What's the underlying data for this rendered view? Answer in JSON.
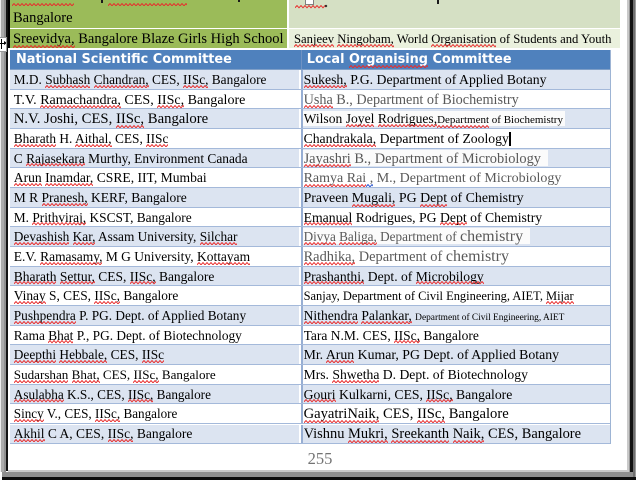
{
  "page": {
    "page_number": "255"
  },
  "colors": {
    "green_mid": "#9bbb59",
    "green_light": "#d5e0c4",
    "green_pale": "#eaf1dd",
    "header_blue": "#4f81bd",
    "row_blue": "#dce4f1",
    "row_white": "#ffffff",
    "border_blue": "#a4b9da",
    "divider_blue": "#97aed3",
    "text_black": "#000000",
    "text_gray": "#595959",
    "squiggle_red": "#e82c2c",
    "squiggle_blue": "#2952cc",
    "highlight_box": "#fbfbfb",
    "page_number_gray": "#737373"
  },
  "green_table": {
    "partial_row": {
      "left_line2": "Bangalore"
    },
    "row": {
      "left": [
        {
          "t": "Sreevidya,",
          "sq": "red"
        },
        {
          "t": " Bangalore Blaze Girls High School"
        }
      ],
      "left_fs": 14.5,
      "right": [
        {
          "t": "Sanjeev",
          "sq": "red"
        },
        {
          "t": " "
        },
        {
          "t": "Ningobam,",
          "sq": "red"
        },
        {
          "t": " World "
        },
        {
          "t": "Organisation",
          "sq": "red"
        },
        {
          "t": " of Students and Youth"
        }
      ],
      "right_fs": 12.67
    }
  },
  "committee_table": {
    "header": {
      "left": [
        {
          "t": "National Scientific Committee"
        }
      ],
      "right": [
        {
          "t": "Local "
        },
        {
          "t": "Organising",
          "sq": "red"
        },
        {
          "t": " Committee"
        }
      ]
    },
    "rows": [
      {
        "lfs": 13.3,
        "left": [
          {
            "t": "M.D. "
          },
          {
            "t": "Subhash",
            "sq": "red"
          },
          {
            "t": " "
          },
          {
            "t": "Chandran,",
            "sq": "red"
          },
          {
            "t": " CES, "
          },
          {
            "t": "IISc,",
            "sq": "red"
          },
          {
            "t": " Bangalore"
          }
        ],
        "rfs": 13.75,
        "right": [
          {
            "t": "Sukesh,",
            "sq": "red"
          },
          {
            "t": " P.G. Department of Applied Botany"
          }
        ]
      },
      {
        "lfs": 14.05,
        "left": [
          {
            "t": "T.V. "
          },
          {
            "t": "Ramachandra,",
            "sq": "red"
          },
          {
            "t": " CES, "
          },
          {
            "t": "IISc,",
            "sq": "red"
          },
          {
            "t": " Bangalore"
          }
        ],
        "rfs": 14.2,
        "right": [
          {
            "t": "Usha",
            "sq": "red"
          },
          {
            "t": " B., Department of Biochemistry"
          }
        ],
        "right_gray": true
      },
      {
        "lfs": 14.7,
        "left": [
          {
            "t": "N.V. Joshi, CES, "
          },
          {
            "t": "IISc,",
            "sq": "red"
          },
          {
            "t": " Bangalore"
          }
        ],
        "rfs": 13.6,
        "right": [
          {
            "t": "Wilson "
          },
          {
            "t": "Joyel",
            "sq": "red"
          },
          {
            "t": " "
          },
          {
            "t": "Rodrigues,",
            "sq": "red"
          },
          {
            "t": "Department",
            "sq": "red",
            "fs": 11
          },
          {
            "t": " of Biochemistry",
            "fs": 11
          }
        ],
        "right_box_w": 262
      },
      {
        "lfs": 13.35,
        "left": [
          {
            "t": "Bharath",
            "sq": "red"
          },
          {
            "t": " H. "
          },
          {
            "t": "Aithal,",
            "sq": "red"
          },
          {
            "t": " CES, "
          },
          {
            "t": "IISc",
            "sq": "red"
          }
        ],
        "rfs": 13.7,
        "right": [
          {
            "t": "Chandrakala,",
            "sq": "red"
          },
          {
            "t": " Department of Zoology"
          }
        ],
        "caret": true
      },
      {
        "lfs": 13.4,
        "left": [
          {
            "t": "C "
          },
          {
            "t": "Rajasekara",
            "sq": "red"
          },
          {
            "t": " Murthy, Environment Canada"
          }
        ],
        "rfs": 14.4,
        "right": [
          {
            "t": "Jayashri",
            "sq": "red"
          },
          {
            "t": " B., Department of Microbiology"
          }
        ],
        "right_gray": true,
        "right_box_w": 245
      },
      {
        "lfs": 13.6,
        "left": [
          {
            "t": "Arun",
            "sq": "red"
          },
          {
            "t": " "
          },
          {
            "t": "Inamdar,",
            "sq": "red"
          },
          {
            "t": " CSRE, IIT, Mumbai"
          }
        ],
        "rfs": 14.0,
        "right": [
          {
            "t": "Ramya Rai",
            "sq": "red"
          },
          {
            "t": " ,",
            "sq": "blue"
          },
          {
            "t": " M., Department of Microbiology"
          }
        ],
        "right_gray": true
      },
      {
        "lfs": 13.5,
        "left": [
          {
            "t": "M R "
          },
          {
            "t": "Pranesh,",
            "sq": "red"
          },
          {
            "t": " KERF, Bangalore"
          }
        ],
        "rfs": 13.9,
        "right": [
          {
            "t": "Praveen "
          },
          {
            "t": "Mugali,",
            "sq": "red"
          },
          {
            "t": " PG "
          },
          {
            "t": "Dept",
            "sq": "red"
          },
          {
            "t": " of Chemistry"
          }
        ]
      },
      {
        "lfs": 13.37,
        "left": [
          {
            "t": "M. "
          },
          {
            "t": "Prithviraj,",
            "sq": "red"
          },
          {
            "t": " KSCST, Bangalore"
          }
        ],
        "rfs": 13.73,
        "right": [
          {
            "t": "Emanual",
            "sq": "red"
          },
          {
            "t": " Rodrigues, PG "
          },
          {
            "t": "Dept",
            "sq": "red"
          },
          {
            "t": " of Chemistry"
          }
        ]
      },
      {
        "lfs": 13.34,
        "left": [
          {
            "t": "Devashish",
            "sq": "red"
          },
          {
            "t": " "
          },
          {
            "t": "Kar,",
            "sq": "red"
          },
          {
            "t": " Assam University, "
          },
          {
            "t": "Silchar",
            "sq": "red"
          }
        ],
        "rfs": 13.2,
        "right": [
          {
            "t": "Divya",
            "sq": "red"
          },
          {
            "t": " "
          },
          {
            "t": "Baliga,",
            "sq": "red"
          },
          {
            "t": " Department of "
          },
          {
            "t": "chemistry",
            "fs": 16
          }
        ],
        "right_gray": true,
        "right_box_w": 227
      },
      {
        "lfs": 13.47,
        "left": [
          {
            "t": "E.V. "
          },
          {
            "t": "Ramasamy,",
            "sq": "red"
          },
          {
            "t": " M G University, "
          },
          {
            "t": "Kottayam",
            "sq": "red"
          }
        ],
        "rfs": 14.4,
        "right": [
          {
            "t": "Radhika,",
            "sq": "red"
          },
          {
            "t": " Department of "
          },
          {
            "t": "chemistry",
            "fs": 16
          }
        ],
        "right_gray": true
      },
      {
        "lfs": 13.49,
        "left": [
          {
            "t": "Bharath",
            "sq": "red"
          },
          {
            "t": " "
          },
          {
            "t": "Settur,",
            "sq": "red"
          },
          {
            "t": " CES, "
          },
          {
            "t": "IISc,",
            "sq": "red"
          },
          {
            "t": " Bangalore"
          }
        ],
        "rfs": 13.6,
        "right": [
          {
            "t": "Prashanthi,",
            "sq": "red"
          },
          {
            "t": " Dept. of "
          },
          {
            "t": "Microbilogy",
            "sq": "red"
          }
        ]
      },
      {
        "lfs": 13.38,
        "left": [
          {
            "t": "Vinay",
            "sq": "red"
          },
          {
            "t": " S, CES, "
          },
          {
            "t": "IISc,",
            "sq": "red"
          },
          {
            "t": " Bangalore"
          }
        ],
        "rfs": 12.45,
        "right": [
          {
            "t": "Sanjay, Department of Civil Engineering, AIET, "
          },
          {
            "t": "Mijar",
            "sq": "red"
          }
        ]
      },
      {
        "lfs": 13.31,
        "left": [
          {
            "t": "Pushpendra",
            "sq": "red"
          },
          {
            "t": " P. PG. Dept. of Applied Botany"
          }
        ],
        "rfs": 13.6,
        "right": [
          {
            "t": "Nithendra",
            "sq": "red"
          },
          {
            "t": " "
          },
          {
            "t": "Palankar,",
            "sq": "red"
          },
          {
            "t": " "
          },
          {
            "t": "Department of Civil Engineering, AIET",
            "fs": 9.4
          }
        ]
      },
      {
        "lfs": 13.34,
        "left": [
          {
            "t": "Rama "
          },
          {
            "t": "Bhat",
            "sq": "red"
          },
          {
            "t": " P., PG. Dept. of Biotechnology"
          }
        ],
        "rfs": 13.5,
        "right": [
          {
            "t": "Tara N.M. CES, "
          },
          {
            "t": "IISc,",
            "sq": "red"
          },
          {
            "t": " Bangalore"
          }
        ]
      },
      {
        "lfs": 13.36,
        "left": [
          {
            "t": "Deepthi",
            "sq": "red"
          },
          {
            "t": " "
          },
          {
            "t": "Hebbale,",
            "sq": "red"
          },
          {
            "t": " CES, "
          },
          {
            "t": "IISc",
            "sq": "red"
          }
        ],
        "rfs": 13.81,
        "right": [
          {
            "t": "Mr. "
          },
          {
            "t": "Arun",
            "sq": "red"
          },
          {
            "t": " Kumar, PG Dept. of Applied Botany"
          }
        ]
      },
      {
        "lfs": 13.1,
        "left": [
          {
            "t": "Sudarshan",
            "sq": "red"
          },
          {
            "t": " "
          },
          {
            "t": "Bhat,",
            "sq": "red"
          },
          {
            "t": " CES, "
          },
          {
            "t": "IISc,",
            "sq": "red"
          },
          {
            "t": " Bangalore"
          }
        ],
        "rfs": 13.65,
        "right": [
          {
            "t": "Mrs. "
          },
          {
            "t": "Shwetha",
            "sq": "red"
          },
          {
            "t": " D. Dept. of Biotechnology"
          }
        ]
      },
      {
        "lfs": 13.23,
        "left": [
          {
            "t": "Asulabha",
            "sq": "red"
          },
          {
            "t": " K.S., CES, "
          },
          {
            "t": "IISc,",
            "sq": "red"
          },
          {
            "t": " Bangalore"
          }
        ],
        "rfs": 13.7,
        "right": [
          {
            "t": "Gouri",
            "sq": "red"
          },
          {
            "t": " Kulkarni, CES, "
          },
          {
            "t": "IISc,",
            "sq": "red"
          },
          {
            "t": " Bangalore"
          }
        ]
      },
      {
        "lfs": 13.14,
        "left": [
          {
            "t": "Sincy",
            "sq": "red"
          },
          {
            "t": " V., CES, "
          },
          {
            "t": "IISc,",
            "sq": "red"
          },
          {
            "t": " Bangalore"
          }
        ],
        "rfs": 14.6,
        "right": [
          {
            "t": "GayatriNaik,",
            "sq": "red"
          },
          {
            "t": " CES, "
          },
          {
            "t": "IISc,",
            "sq": "red"
          },
          {
            "t": " Bangalore"
          }
        ]
      },
      {
        "lfs": 13.5,
        "left": [
          {
            "t": "Akhil",
            "sq": "red"
          },
          {
            "t": " C A, CES, "
          },
          {
            "t": "IISc,",
            "sq": "red"
          },
          {
            "t": " Bangalore"
          }
        ],
        "rfs": 14.45,
        "right": [
          {
            "t": "Vishnu "
          },
          {
            "t": "Mukri,",
            "sq": "red"
          },
          {
            "t": " "
          },
          {
            "t": "Sreekanth",
            "sq": "red"
          },
          {
            "t": " "
          },
          {
            "t": "Naik,",
            "sq": "red"
          },
          {
            "t": " CES, Bangalore"
          }
        ]
      }
    ]
  }
}
